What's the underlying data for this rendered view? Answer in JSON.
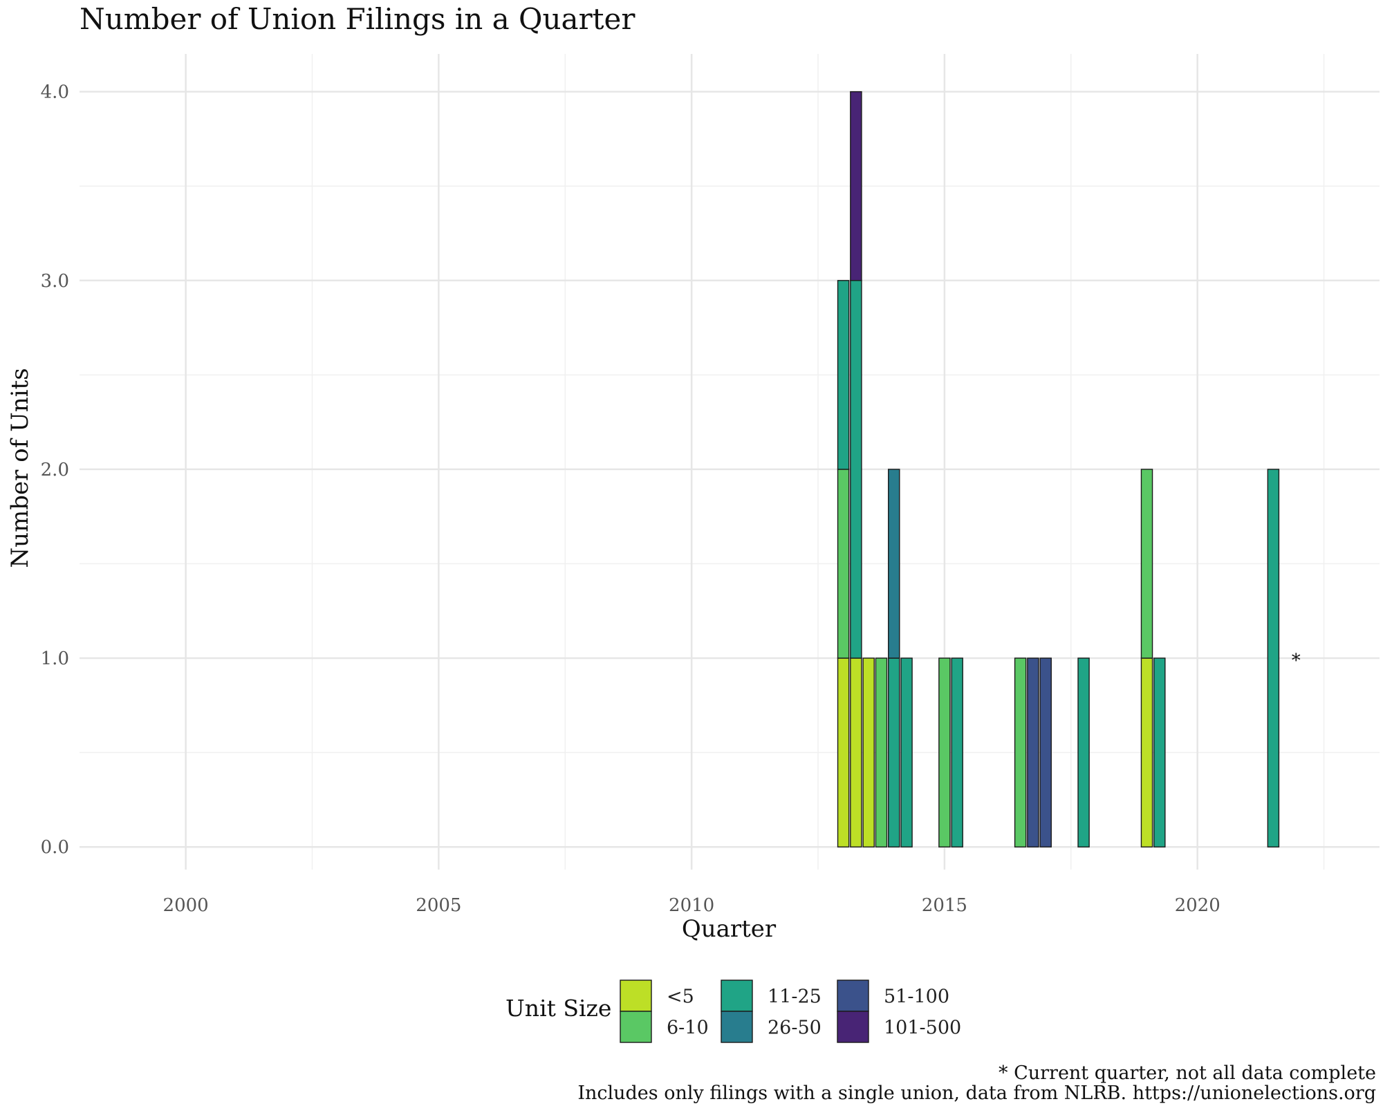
{
  "chart_data": {
    "type": "bar",
    "stacked": true,
    "title": "Number of Union Filings in a Quarter",
    "xlabel": "Quarter",
    "ylabel": "Number of Units",
    "xlim": [
      1997.9,
      2023.6
    ],
    "ylim": [
      -0.12,
      4.2
    ],
    "x_ticks": [
      2000,
      2005,
      2010,
      2015,
      2020
    ],
    "x_tick_labels": [
      "2000",
      "2005",
      "2010",
      "2015",
      "2020"
    ],
    "y_ticks": [
      0,
      1,
      2,
      3,
      4
    ],
    "y_tick_labels": [
      "0.0",
      "1.0",
      "2.0",
      "3.0",
      "4.0"
    ],
    "grid": true,
    "legend_position": "bottom",
    "legend_title": "Unit Size",
    "series": [
      {
        "name": "<5",
        "color": "#bddf26"
      },
      {
        "name": "6-10",
        "color": "#5ac864"
      },
      {
        "name": "11-25",
        "color": "#20a486"
      },
      {
        "name": "26-50",
        "color": "#287d8e"
      },
      {
        "name": "51-100",
        "color": "#3b528b"
      },
      {
        "name": "101-500",
        "color": "#482475"
      }
    ],
    "bar_width_years": 0.22,
    "bars": [
      {
        "quarter": "2013 Q1",
        "x": 2013.0,
        "stack": [
          {
            "size": "<5",
            "value": 1
          },
          {
            "size": "6-10",
            "value": 1
          },
          {
            "size": "11-25",
            "value": 1
          }
        ]
      },
      {
        "quarter": "2013 Q2",
        "x": 2013.25,
        "stack": [
          {
            "size": "<5",
            "value": 1
          },
          {
            "size": "11-25",
            "value": 2
          },
          {
            "size": "101-500",
            "value": 1
          }
        ]
      },
      {
        "quarter": "2013 Q3",
        "x": 2013.5,
        "stack": [
          {
            "size": "<5",
            "value": 1
          }
        ]
      },
      {
        "quarter": "2013 Q4",
        "x": 2013.75,
        "stack": [
          {
            "size": "6-10",
            "value": 1
          }
        ]
      },
      {
        "quarter": "2014 Q1",
        "x": 2014.0,
        "stack": [
          {
            "size": "11-25",
            "value": 1
          },
          {
            "size": "26-50",
            "value": 1
          }
        ]
      },
      {
        "quarter": "2014 Q2",
        "x": 2014.25,
        "stack": [
          {
            "size": "11-25",
            "value": 1
          }
        ]
      },
      {
        "quarter": "2015 Q1",
        "x": 2015.0,
        "stack": [
          {
            "size": "6-10",
            "value": 1
          }
        ]
      },
      {
        "quarter": "2015 Q2",
        "x": 2015.25,
        "stack": [
          {
            "size": "11-25",
            "value": 1
          }
        ]
      },
      {
        "quarter": "2016 Q3",
        "x": 2016.5,
        "stack": [
          {
            "size": "6-10",
            "value": 1
          }
        ]
      },
      {
        "quarter": "2016 Q4",
        "x": 2016.75,
        "stack": [
          {
            "size": "51-100",
            "value": 1
          }
        ]
      },
      {
        "quarter": "2017 Q1",
        "x": 2017.0,
        "stack": [
          {
            "size": "51-100",
            "value": 1
          }
        ]
      },
      {
        "quarter": "2017 Q4",
        "x": 2017.75,
        "stack": [
          {
            "size": "11-25",
            "value": 1
          }
        ]
      },
      {
        "quarter": "2019 Q1",
        "x": 2019.0,
        "stack": [
          {
            "size": "<5",
            "value": 1
          },
          {
            "size": "6-10",
            "value": 1
          }
        ]
      },
      {
        "quarter": "2019 Q2",
        "x": 2019.25,
        "stack": [
          {
            "size": "11-25",
            "value": 1
          }
        ]
      },
      {
        "quarter": "2021 Q3",
        "x": 2021.5,
        "stack": [
          {
            "size": "11-25",
            "value": 2
          }
        ]
      }
    ],
    "annotations": [
      {
        "text": "*",
        "x": 2021.95,
        "y": 1.0
      }
    ],
    "caption_lines": [
      "* Current quarter, not all data complete",
      "Includes only filings with a single union, data from NLRB. https://unionelections.org"
    ]
  }
}
